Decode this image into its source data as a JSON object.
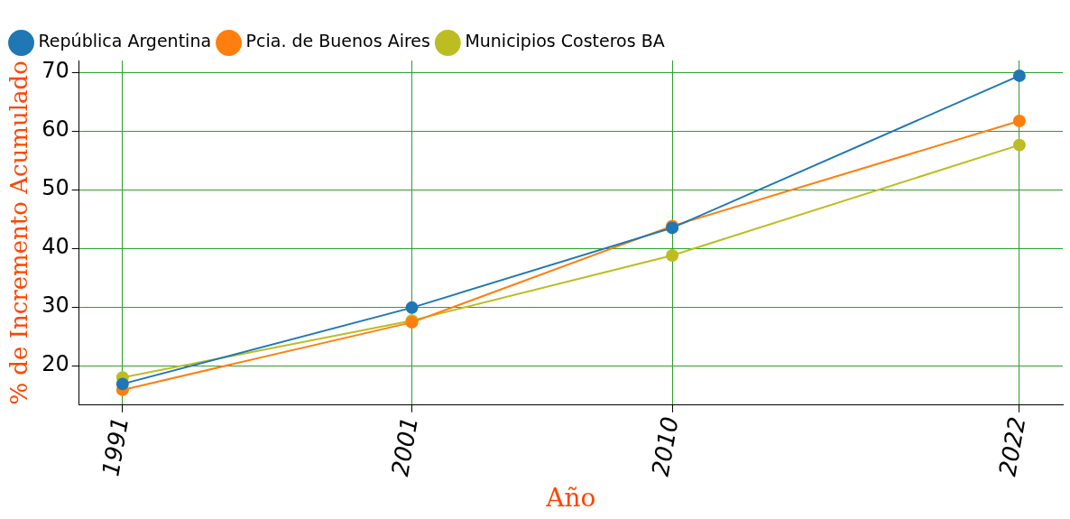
{
  "chart_data": {
    "type": "line",
    "xlabel": "Año",
    "ylabel": "% de Incremento Acumulado",
    "x": [
      1991,
      2001,
      2010,
      2022
    ],
    "series": [
      {
        "name": "República Argentina",
        "color": "#1f77b4",
        "values": [
          16.9,
          29.9,
          43.5,
          69.4
        ]
      },
      {
        "name": "Pcia. de Buenos Aires",
        "color": "#ff7f0e",
        "values": [
          15.9,
          27.4,
          43.8,
          61.7
        ]
      },
      {
        "name": "Municipios Costeros BA",
        "color": "#bcbd22",
        "values": [
          18.0,
          27.7,
          38.8,
          57.6
        ]
      }
    ],
    "xlim": [
      1989.5,
      2023.5
    ],
    "xticks": [
      1991,
      2001,
      2010,
      2022
    ],
    "ylim": [
      13.3,
      72
    ],
    "yticks": [
      20,
      30,
      40,
      50,
      60,
      70
    ],
    "grid": true,
    "legend": "top left",
    "marker": "circle",
    "line_style": "solid"
  }
}
